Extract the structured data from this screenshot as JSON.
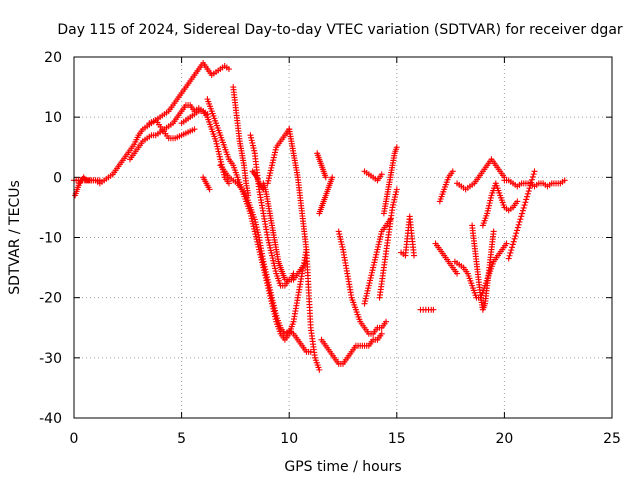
{
  "chart_data": {
    "type": "scatter",
    "title": "Day 115 of 2024, Sidereal Day-to-day VTEC variation (SDTVAR) for receiver dgar",
    "xlabel": "GPS time / hours",
    "ylabel": "SDTVAR / TECUs",
    "xlim": [
      0,
      25
    ],
    "ylim": [
      -40,
      20
    ],
    "xticks": [
      0,
      5,
      10,
      15,
      20,
      25
    ],
    "yticks": [
      -40,
      -30,
      -20,
      -10,
      0,
      10,
      20
    ],
    "grid": true,
    "legend": "none",
    "marker": "plus",
    "color": "#ff0000",
    "series": [
      {
        "x": [
          0.05,
          0.15,
          0.25,
          0.35,
          0.45,
          0.55,
          0.65,
          0.8,
          1.0,
          1.2,
          1.4,
          1.6,
          1.8,
          2.0,
          2.2,
          2.4,
          2.6,
          2.8,
          3.0,
          3.2,
          3.4,
          3.6,
          3.8,
          4.0,
          4.2,
          4.4,
          4.6,
          4.8,
          5.0,
          5.2,
          5.4,
          5.6,
          5.8,
          6.0,
          6.2,
          6.4,
          6.6,
          6.8,
          7.0,
          7.2
        ],
        "y": [
          -3,
          -2,
          -1,
          -0.5,
          0,
          -0.5,
          -0.5,
          -0.5,
          -0.5,
          -1,
          -0.5,
          0,
          0.5,
          1.5,
          2.5,
          3.5,
          4.5,
          5.5,
          7,
          8,
          8.5,
          9,
          9.5,
          10,
          10.5,
          11,
          12,
          13,
          14,
          15,
          16,
          17,
          18,
          19,
          18,
          17,
          17.5,
          18,
          18.5,
          18
        ]
      },
      {
        "x": [
          0.0,
          0.3,
          0.6,
          0.9,
          1.2
        ],
        "y": [
          -0.5,
          -0.5,
          -0.5,
          -0.5,
          -0.5
        ]
      },
      {
        "x": [
          2.6,
          2.8,
          3.0,
          3.2,
          3.4,
          3.6,
          3.8,
          4.0,
          4.2,
          4.4,
          4.6,
          4.8,
          5.0,
          5.2,
          5.4,
          5.6,
          5.8,
          6.0,
          6.2
        ],
        "y": [
          3,
          4,
          5,
          6,
          6.5,
          7,
          7,
          7.5,
          8,
          8.5,
          9,
          10,
          11,
          12,
          12,
          11,
          11.5,
          11,
          10.5
        ]
      },
      {
        "x": [
          3.5,
          3.8,
          4.1,
          4.4,
          4.7,
          5.0,
          5.3,
          5.6
        ],
        "y": [
          9,
          9.5,
          8,
          6.5,
          6.5,
          7,
          7.5,
          8
        ]
      },
      {
        "x": [
          5.0,
          5.2,
          5.4,
          5.6,
          5.8,
          6.0,
          6.2,
          6.4,
          6.6,
          6.8,
          7.0,
          7.2
        ],
        "y": [
          9,
          9.5,
          10,
          10.5,
          11,
          11,
          10,
          8,
          6,
          3,
          0,
          -1
        ]
      },
      {
        "x": [
          6.0,
          6.15,
          6.3
        ],
        "y": [
          0,
          -1,
          -2
        ]
      },
      {
        "x": [
          6.2,
          6.4,
          6.6,
          6.8,
          7.0,
          7.2,
          7.4,
          7.6,
          7.8,
          8.0,
          8.2,
          8.4,
          8.6,
          8.8,
          9.0,
          9.2,
          9.4,
          9.6,
          9.8,
          10.0,
          10.2,
          10.4,
          10.6,
          10.8,
          11.0,
          11.2,
          11.4
        ],
        "y": [
          13,
          11,
          9,
          7,
          5,
          3,
          2,
          0,
          -2,
          -4,
          -6,
          -9,
          -12,
          -15,
          -18,
          -21,
          -24,
          -26,
          -27,
          -26,
          -24,
          -20,
          -16,
          -12,
          -25,
          -30,
          -32
        ]
      },
      {
        "x": [
          6.8,
          7.0,
          7.2,
          7.4,
          7.6,
          7.8,
          8.0,
          8.2,
          8.4,
          8.6,
          8.8,
          9.0,
          9.2,
          9.4,
          9.6,
          9.8,
          10.0,
          10.2,
          10.4,
          10.6,
          10.8,
          11.0
        ],
        "y": [
          2,
          1,
          0,
          -0.5,
          -1,
          -2,
          -3,
          -5,
          -7,
          -10,
          -14,
          -17,
          -20,
          -23,
          -25,
          -26,
          -25.5,
          -26,
          -27,
          -28,
          -29,
          -29
        ]
      },
      {
        "x": [
          7.4,
          7.5,
          7.6,
          7.7,
          7.8,
          7.9,
          8.0,
          8.1
        ],
        "y": [
          15,
          12,
          9,
          6,
          4,
          2,
          -1,
          -3
        ]
      },
      {
        "x": [
          8.2,
          8.4,
          8.6,
          8.8,
          9.0,
          9.2,
          9.4,
          9.6,
          9.8,
          10.0,
          10.2,
          10.4,
          10.6,
          10.8
        ],
        "y": [
          7,
          4,
          -2,
          -6,
          -10,
          -13,
          -16,
          -18,
          -18,
          -17,
          -17,
          -16,
          -15,
          -14
        ]
      },
      {
        "x": [
          8.8,
          8.9,
          9.0,
          9.1,
          9.2,
          9.3,
          9.4,
          9.5,
          9.6,
          9.7,
          9.8,
          9.9,
          10.0,
          10.1,
          10.2
        ],
        "y": [
          -1,
          -2,
          -4,
          -6,
          -8,
          -10,
          -12,
          -14,
          -15,
          -16,
          -17,
          -17,
          -17,
          -17,
          -16
        ]
      },
      {
        "x": [
          9.0,
          9.2,
          9.4,
          9.6,
          9.8,
          10.0
        ],
        "y": [
          -1,
          2,
          5,
          6,
          7,
          8
        ]
      },
      {
        "x": [
          8.3,
          8.4,
          8.5,
          8.6,
          8.7,
          8.8
        ],
        "y": [
          1,
          0.5,
          0,
          -1,
          -1.5,
          -2
        ]
      },
      {
        "x": [
          10.0,
          10.1,
          10.2,
          10.3,
          10.4,
          10.5,
          10.6,
          10.7,
          10.8
        ],
        "y": [
          8,
          6,
          4,
          2,
          0,
          -3,
          -6,
          -9,
          -12
        ]
      },
      {
        "x": [
          11.3,
          11.4,
          11.5,
          11.6,
          11.7
        ],
        "y": [
          4,
          3,
          2,
          1,
          0
        ]
      },
      {
        "x": [
          11.4,
          11.5,
          11.6,
          11.7,
          11.8,
          11.9,
          12.0
        ],
        "y": [
          -6,
          -5,
          -4,
          -3,
          -2,
          -1,
          0
        ]
      },
      {
        "x": [
          11.5,
          11.7,
          11.9,
          12.1,
          12.3,
          12.5,
          12.7,
          12.9,
          13.1,
          13.3,
          13.5,
          13.7,
          13.9,
          14.1,
          14.3
        ],
        "y": [
          -27,
          -28,
          -29,
          -30,
          -31,
          -31,
          -30,
          -29,
          -28,
          -28,
          -28,
          -28,
          -27,
          -27,
          -26
        ]
      },
      {
        "x": [
          12.3,
          12.5,
          12.7,
          12.9,
          13.1,
          13.3,
          13.5,
          13.7,
          13.9,
          14.1,
          14.3,
          14.5
        ],
        "y": [
          -9,
          -12,
          -16,
          -20,
          -22,
          -24,
          -25,
          -26,
          -26,
          -25,
          -25,
          -24
        ]
      },
      {
        "x": [
          13.5,
          13.7,
          13.9,
          14.1,
          14.3,
          14.5,
          14.7
        ],
        "y": [
          -21,
          -18,
          -15,
          -12,
          -9,
          -8,
          -7
        ]
      },
      {
        "x": [
          14.2,
          14.4,
          14.6,
          14.8,
          15.0
        ],
        "y": [
          -20,
          -15,
          -10,
          -5,
          -2
        ]
      },
      {
        "x": [
          14.4,
          14.5,
          14.6,
          14.7,
          14.8,
          14.9,
          15.0
        ],
        "y": [
          -6,
          -4,
          -2,
          0,
          2,
          4,
          5
        ]
      },
      {
        "x": [
          13.5,
          13.7,
          13.9,
          14.1,
          14.3
        ],
        "y": [
          1,
          0.5,
          0,
          -0.5,
          0.5
        ]
      },
      {
        "x": [
          15.2,
          15.4,
          15.6,
          15.8
        ],
        "y": [
          -12.5,
          -13,
          -6.5,
          -13
        ]
      },
      {
        "x": [
          16.1,
          16.6,
          16.7
        ],
        "y": [
          -22,
          -22,
          -22
        ]
      },
      {
        "x": [
          16.8,
          17.0,
          17.2,
          17.4,
          17.6,
          17.8
        ],
        "y": [
          -11,
          -12,
          -13,
          -14,
          -15,
          -16
        ]
      },
      {
        "x": [
          17.0,
          17.2,
          17.4,
          17.6
        ],
        "y": [
          -4,
          -2,
          0,
          1
        ]
      },
      {
        "x": [
          17.8,
          18.0,
          18.2,
          18.4,
          18.6,
          18.8,
          19.0,
          19.2,
          19.4,
          19.6,
          19.8,
          20.0
        ],
        "y": [
          -1,
          -1.5,
          -2,
          -1.5,
          -1,
          0,
          1,
          2,
          3,
          2,
          1,
          0
        ]
      },
      {
        "x": [
          17.7,
          17.9,
          18.1,
          18.3,
          18.5,
          18.7,
          18.9,
          19.1,
          19.3,
          19.5,
          19.7,
          19.9,
          20.1
        ],
        "y": [
          -14,
          -14.5,
          -15,
          -16,
          -18,
          -20,
          -20,
          -18,
          -16,
          -14,
          -13,
          -12,
          -11
        ]
      },
      {
        "x": [
          18.5,
          18.6,
          18.7,
          18.8,
          18.9,
          19.0,
          19.1,
          19.2,
          19.3,
          19.4,
          19.5
        ],
        "y": [
          -8,
          -11,
          -14,
          -17,
          -20,
          -22,
          -21,
          -18,
          -15,
          -12,
          -9
        ]
      },
      {
        "x": [
          19.0,
          19.2,
          19.4,
          19.6,
          19.8,
          20.0,
          20.2,
          20.4,
          20.6
        ],
        "y": [
          -8,
          -6,
          -3,
          -1,
          -3,
          -5,
          -5.5,
          -5,
          -4
        ]
      },
      {
        "x": [
          20.0,
          20.2,
          20.4,
          20.6,
          20.8,
          21.0,
          21.2,
          21.4,
          21.6,
          21.8,
          22.0,
          22.2,
          22.4,
          22.6,
          22.8
        ],
        "y": [
          -0.5,
          -0.5,
          -1,
          -1.5,
          -1,
          -1,
          -1,
          -1.5,
          -1,
          -1,
          -1.5,
          -1,
          -1,
          -1,
          -0.5
        ]
      },
      {
        "x": [
          20.2,
          21.4
        ],
        "y": [
          -13.5,
          1
        ]
      }
    ]
  }
}
